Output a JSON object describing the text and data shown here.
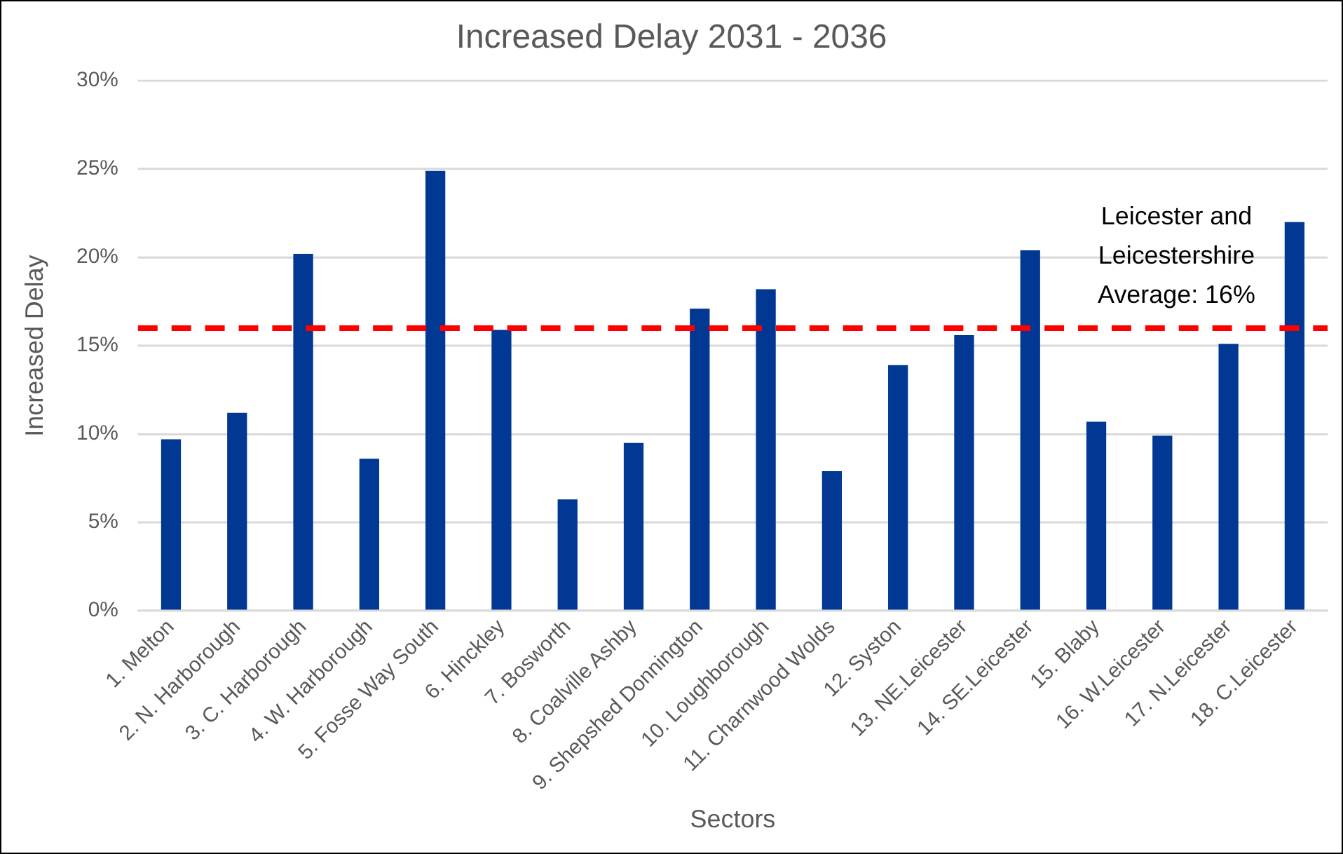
{
  "chart_data": {
    "type": "bar",
    "title": "Increased Delay 2031 - 2036",
    "xlabel": "Sectors",
    "ylabel": "Increased Delay",
    "categories": [
      "1. Melton",
      "2. N. Harborough",
      "3. C. Harborough",
      "4. W. Harborough",
      "5. Fosse Way South",
      "6. Hinckley",
      "7. Bosworth",
      "8. Coalville Ashby",
      "9. Shepshed Donnington",
      "10. Loughborough",
      "11. Charnwood Wolds",
      "12. Syston",
      "13. NE.Leicester",
      "14. SE.Leicester",
      "15. Blaby",
      "16. W.Leicester",
      "17. N.Leicester",
      "18. C.Leicester"
    ],
    "values": [
      9.7,
      11.2,
      20.2,
      8.6,
      24.9,
      15.9,
      6.3,
      9.5,
      17.1,
      18.2,
      7.9,
      13.9,
      15.6,
      20.4,
      10.7,
      9.9,
      15.1,
      22.0
    ],
    "color": "#003893",
    "ylim": [
      0,
      30
    ],
    "yticks": [
      {
        "value": 0,
        "label": "0%"
      },
      {
        "value": 5,
        "label": "5%"
      },
      {
        "value": 10,
        "label": "10%"
      },
      {
        "value": 15,
        "label": "15%"
      },
      {
        "value": 20,
        "label": "20%"
      },
      {
        "value": 25,
        "label": "25%"
      },
      {
        "value": 30,
        "label": "30%"
      }
    ],
    "grid": "y",
    "ref_lines": [
      {
        "axis": "y",
        "value": 16,
        "label": "Leicester and Leicestershire Average: 16%",
        "color": "#ff0000",
        "line_style": "dashed"
      }
    ]
  }
}
